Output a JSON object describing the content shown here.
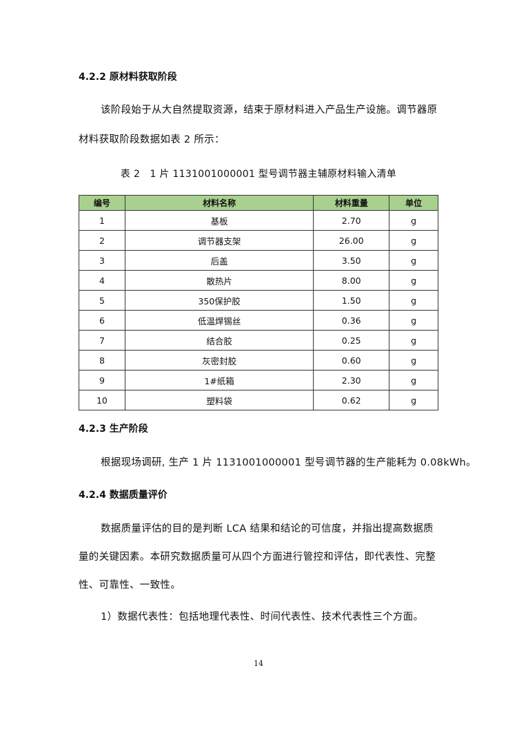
{
  "section_422": {
    "heading": "4.2.2 原材料获取阶段",
    "para_line1": "该阶段始于从大自然提取资源，结束于原材料进入产品生产设施。调节器原",
    "para_line2": "材料获取阶段数据如表 2 所示："
  },
  "table": {
    "caption": "表 2　1 片 1131001000001 型号调节器主辅原材料输入清单",
    "header_color": "#a9d08e",
    "columns": [
      "编号",
      "材料名称",
      "材料重量",
      "单位"
    ],
    "rows": [
      [
        "1",
        "基板",
        "2.70",
        "g"
      ],
      [
        "2",
        "调节器支架",
        "26.00",
        "g"
      ],
      [
        "3",
        "后盖",
        "3.50",
        "g"
      ],
      [
        "4",
        "散热片",
        "8.00",
        "g"
      ],
      [
        "5",
        "350保护胶",
        "1.50",
        "g"
      ],
      [
        "6",
        "低温焊锡丝",
        "0.36",
        "g"
      ],
      [
        "7",
        "结合胶",
        "0.25",
        "g"
      ],
      [
        "8",
        "灰密封胶",
        "0.60",
        "g"
      ],
      [
        "9",
        "1#纸箱",
        "2.30",
        "g"
      ],
      [
        "10",
        "塑料袋",
        "0.62",
        "g"
      ]
    ]
  },
  "section_423": {
    "heading": "4.2.3 生产阶段",
    "para": "根据现场调研, 生产 1 片 1131001000001 型号调节器的生产能耗为 0.08kWh。"
  },
  "section_424": {
    "heading": "4.2.4 数据质量评价",
    "para_line1": "数据质量评估的目的是判断 LCA  结果和结论的可信度，并指出提高数据质",
    "para_line2": "量的关键因素。本研究数据质量可从四个方面进行管控和评估，即代表性、完整",
    "para_line3": "性、可靠性、一致性。",
    "item1": "1）数据代表性：包括地理代表性、时间代表性、技术代表性三个方面。"
  },
  "page_number": "14"
}
